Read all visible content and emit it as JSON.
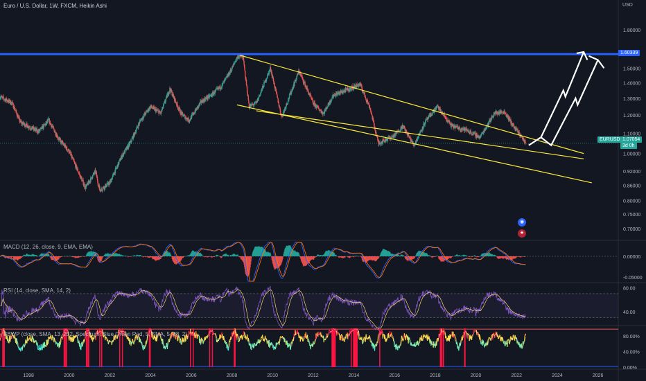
{
  "header": {
    "title": "Euro / U.S. Dollar, 1W, FXCM, Heikin Ashi",
    "currency": "USD",
    "symbol_tag": "EURUSD",
    "last_price": "1.07054",
    "countdown": "3d 0h",
    "hline_label": "1.60339"
  },
  "panes": {
    "macd": "MACD (12, 26, close, 9, EMA, EMA)",
    "rsi": "RSI (14, close, SMA, 14, 2)",
    "bbwp": "BBWP (close, SMA, 13, 252, Spectrum, Blue Green Red, 5, SMA, 5, 98, 2)"
  },
  "colors": {
    "background": "#131722",
    "up": "#26a69a",
    "down": "#ef5350",
    "channel": "#ffeb3b",
    "hline": "#2962ff",
    "arrows": "#ffffff",
    "macd": "#2962ff",
    "signal": "#ff6d00",
    "rsi": "#7e57c2"
  },
  "badges": [
    "event-flag",
    "us-flag"
  ],
  "chart_data": {
    "type": "candlestick",
    "timeframe": "1W",
    "price_axis": {
      "ticks": [
        "1.80000",
        "1.60339",
        "1.50000",
        "1.40000",
        "1.30000",
        "1.20000",
        "1.10000",
        "1.00000",
        "0.92000",
        "0.86000",
        "0.80000",
        "0.75000",
        "0.70000"
      ],
      "scale": "log"
    },
    "x_axis": {
      "ticks": [
        "1998",
        "2000",
        "2002",
        "2004",
        "2006",
        "2008",
        "2010",
        "2012",
        "2014",
        "2016",
        "2018",
        "2020",
        "2022",
        "2024",
        "2026"
      ],
      "range": [
        1996.6,
        2027.0
      ]
    },
    "price_anchors": [
      [
        1996.6,
        1.31
      ],
      [
        1997.2,
        1.27
      ],
      [
        1997.6,
        1.16
      ],
      [
        1998.5,
        1.11
      ],
      [
        1999.0,
        1.17
      ],
      [
        1999.5,
        1.07
      ],
      [
        2000.0,
        1.01
      ],
      [
        2000.8,
        0.85
      ],
      [
        2001.3,
        0.92
      ],
      [
        2001.5,
        0.84
      ],
      [
        2002.0,
        0.87
      ],
      [
        2002.6,
        0.99
      ],
      [
        2003.0,
        1.05
      ],
      [
        2003.5,
        1.17
      ],
      [
        2004.0,
        1.25
      ],
      [
        2004.5,
        1.21
      ],
      [
        2004.95,
        1.36
      ],
      [
        2005.5,
        1.21
      ],
      [
        2005.9,
        1.17
      ],
      [
        2006.5,
        1.28
      ],
      [
        2007.0,
        1.32
      ],
      [
        2007.5,
        1.38
      ],
      [
        2007.9,
        1.47
      ],
      [
        2008.3,
        1.59
      ],
      [
        2008.55,
        1.58
      ],
      [
        2008.85,
        1.25
      ],
      [
        2009.2,
        1.27
      ],
      [
        2009.9,
        1.5
      ],
      [
        2010.45,
        1.19
      ],
      [
        2011.3,
        1.48
      ],
      [
        2012.0,
        1.27
      ],
      [
        2012.5,
        1.21
      ],
      [
        2013.0,
        1.32
      ],
      [
        2013.8,
        1.36
      ],
      [
        2014.3,
        1.39
      ],
      [
        2014.8,
        1.24
      ],
      [
        2015.2,
        1.05
      ],
      [
        2016.0,
        1.09
      ],
      [
        2016.4,
        1.14
      ],
      [
        2016.95,
        1.04
      ],
      [
        2017.5,
        1.16
      ],
      [
        2018.1,
        1.25
      ],
      [
        2018.8,
        1.14
      ],
      [
        2019.5,
        1.12
      ],
      [
        2020.2,
        1.08
      ],
      [
        2020.9,
        1.21
      ],
      [
        2021.4,
        1.22
      ],
      [
        2021.9,
        1.13
      ],
      [
        2022.2,
        1.09
      ],
      [
        2022.45,
        1.05
      ]
    ],
    "horizontal_line": 1.60339,
    "channel_lines": [
      {
        "from": [
          2008.4,
          1.595
        ],
        "to": [
          2025.3,
          1.0
        ]
      },
      {
        "from": [
          2008.25,
          1.26
        ],
        "to": [
          2025.7,
          0.87
        ]
      },
      {
        "from": [
          2009.2,
          1.225
        ],
        "to": [
          2025.3,
          0.975
        ]
      }
    ],
    "projection_arrows": [
      {
        "points": [
          [
            2022.6,
            1.04
          ],
          [
            2023.2,
            1.08
          ],
          [
            2024.3,
            1.35
          ],
          [
            2024.4,
            1.31
          ],
          [
            2025.3,
            1.62
          ]
        ],
        "head": [
          [
            2024.95,
            1.61
          ],
          [
            2025.48,
            1.56
          ]
        ]
      },
      {
        "points": [
          [
            2023.2,
            1.08
          ],
          [
            2023.7,
            1.04
          ],
          [
            2024.9,
            1.3
          ],
          [
            2025.0,
            1.26
          ],
          [
            2026.0,
            1.56
          ]
        ],
        "head": [
          [
            2025.55,
            1.59
          ],
          [
            2026.3,
            1.5
          ]
        ]
      }
    ],
    "macd": {
      "ticks": [
        "0.00000",
        "-0.05000"
      ]
    },
    "rsi": {
      "ticks": [
        "80.00",
        "40.00"
      ],
      "bands": [
        70,
        30
      ]
    },
    "bbwp": {
      "ticks": [
        "80.00%",
        "40.00%",
        "0.00%"
      ],
      "thresholds": [
        98,
        2
      ]
    }
  }
}
